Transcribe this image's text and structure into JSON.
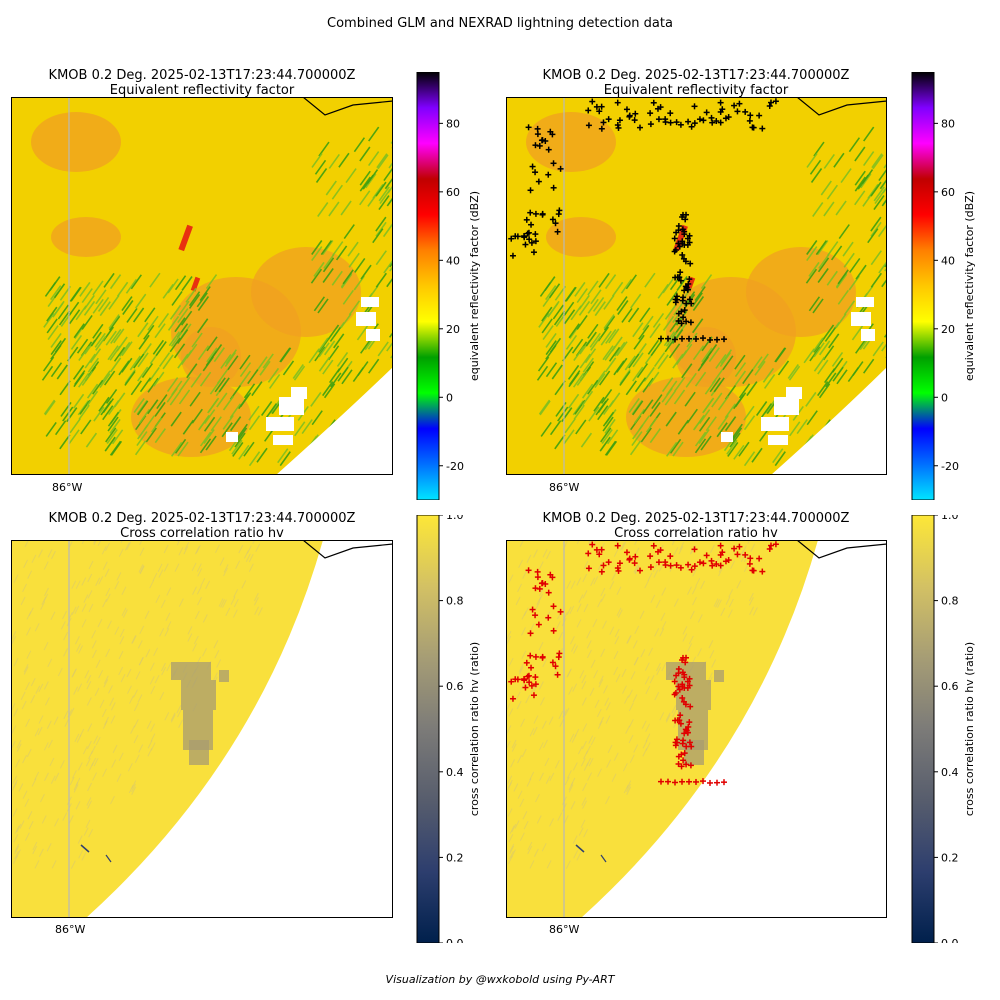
{
  "figure": {
    "suptitle": "Combined GLM and NEXRAD lightning detection data",
    "credit": "Visualization by @wxkobold using Py-ART"
  },
  "chart_data": [
    {
      "type": "heatmap",
      "title": "KMOB 0.2 Deg. 2025-02-13T17:23:44.700000Z",
      "subtitle": "Equivalent reflectivity factor",
      "xtick_label": "86°W",
      "lightning_overlay": false,
      "colorbar": {
        "label": "equivalent reflectivity factor (dBZ)",
        "range": [
          -30,
          95
        ],
        "ticks": [
          -20,
          0,
          20,
          40,
          60,
          80
        ],
        "colors": [
          "#00e5ff",
          "#0070ff",
          "#0000ff",
          "#00ff00",
          "#00a000",
          "#ffff00",
          "#ffc800",
          "#ff8000",
          "#ff0000",
          "#c00000",
          "#ff00ff",
          "#8000ff",
          "#000000"
        ]
      }
    },
    {
      "type": "heatmap",
      "title": "KMOB 0.2 Deg. 2025-02-13T17:23:44.700000Z",
      "subtitle": "Equivalent reflectivity factor",
      "xtick_label": "86°W",
      "lightning_overlay": true,
      "lightning_color": "#000000",
      "colorbar": {
        "label": "equivalent reflectivity factor (dBZ)",
        "range": [
          -30,
          95
        ],
        "ticks": [
          -20,
          0,
          20,
          40,
          60,
          80
        ],
        "colors": [
          "#00e5ff",
          "#0070ff",
          "#0000ff",
          "#00ff00",
          "#00a000",
          "#ffff00",
          "#ffc800",
          "#ff8000",
          "#ff0000",
          "#c00000",
          "#ff00ff",
          "#8000ff",
          "#000000"
        ]
      }
    },
    {
      "type": "heatmap",
      "title": "KMOB 0.2 Deg. 2025-02-13T17:23:44.700000Z",
      "subtitle": "Cross correlation ratio hv",
      "xtick_label": "86°W",
      "lightning_overlay": false,
      "colorbar": {
        "label": "cross correlation ratio hv (ratio)",
        "range": [
          0,
          1
        ],
        "ticks": [
          "0.0",
          "0.2",
          "0.4",
          "0.6",
          "0.8",
          "1.0"
        ],
        "colors": [
          "#00204c",
          "#2d3e6e",
          "#575d6d",
          "#7c7b78",
          "#a69d75",
          "#d3c164",
          "#fde737"
        ]
      }
    },
    {
      "type": "heatmap",
      "title": "KMOB 0.2 Deg. 2025-02-13T17:23:44.700000Z",
      "subtitle": "Cross correlation ratio hv",
      "xtick_label": "86°W",
      "lightning_overlay": true,
      "lightning_color": "#e00000",
      "colorbar": {
        "label": "cross correlation ratio hv (ratio)",
        "range": [
          0,
          1
        ],
        "ticks": [
          "0.0",
          "0.2",
          "0.4",
          "0.6",
          "0.8",
          "1.0"
        ],
        "colors": [
          "#00204c",
          "#2d3e6e",
          "#575d6d",
          "#7c7b78",
          "#a69d75",
          "#d3c164",
          "#fde737"
        ]
      }
    }
  ]
}
